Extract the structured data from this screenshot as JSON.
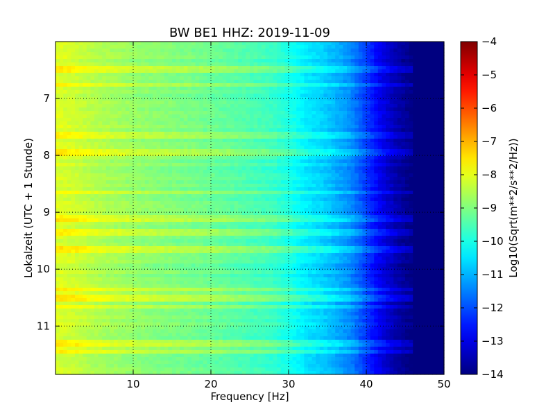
{
  "chart_data": {
    "type": "heatmap",
    "title": "BW BE1 HHZ: 2019-11-09",
    "xlabel": "Frequency [Hz]",
    "ylabel": "Lokalzeit (UTC + 1 Stunde)",
    "xlim": [
      0,
      50
    ],
    "ylim": [
      6.0,
      11.85
    ],
    "y_inverted": true,
    "grid": true,
    "grid_style": "dotted",
    "x_ticks": [
      10,
      20,
      30,
      40,
      50
    ],
    "y_ticks": [
      7,
      8,
      9,
      10,
      11
    ],
    "colormap": "jet",
    "colorbar": {
      "label": "Log10(Sqrt(m**2/s**2/Hz))",
      "range": [
        -14,
        -4
      ],
      "ticks": [
        -4,
        -5,
        -6,
        -7,
        -8,
        -9,
        -10,
        -11,
        -12,
        -13,
        -14
      ]
    },
    "frequency_profile_hz": [
      0,
      2,
      5,
      10,
      20,
      28,
      30,
      32,
      35,
      38,
      40,
      42,
      44,
      46,
      48,
      50
    ],
    "frequency_profile_log10": [
      -8.1,
      -8.2,
      -8.5,
      -8.8,
      -9.2,
      -9.7,
      -10.0,
      -10.4,
      -10.8,
      -11.4,
      -12.2,
      -13.0,
      -13.6,
      -14.0,
      -14.0,
      -14.0
    ],
    "bright_event_times": [
      6.5,
      6.75,
      7.65,
      7.95,
      8.65,
      9.1,
      9.35,
      9.65,
      10.35,
      10.5,
      10.65,
      11.3,
      11.45
    ]
  }
}
